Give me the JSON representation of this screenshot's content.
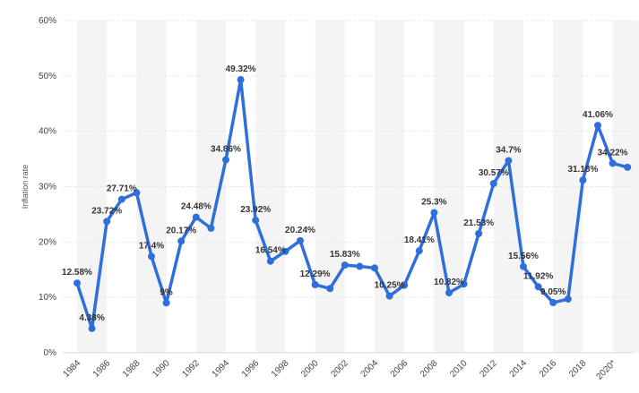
{
  "chart_data": {
    "type": "line",
    "title": "",
    "xlabel": "",
    "ylabel": "Inflation rate",
    "ylim": [
      0,
      60
    ],
    "yticks": [
      "0%",
      "10%",
      "20%",
      "30%",
      "40%",
      "50%",
      "60%"
    ],
    "xticks": [
      "1984",
      "1986",
      "1988",
      "1990",
      "1992",
      "1994",
      "1996",
      "1998",
      "2000",
      "2002",
      "2004",
      "2006",
      "2008",
      "2010",
      "2012",
      "2014",
      "2016",
      "2018",
      "2020*"
    ],
    "grid": true,
    "series_color": "#2f6fdb",
    "band_color": "#f4f4f4",
    "x": [
      "1984",
      "1985",
      "1986",
      "1987",
      "1988",
      "1989",
      "1990",
      "1991",
      "1992",
      "1993",
      "1994",
      "1995",
      "1996",
      "1997",
      "1998",
      "1999",
      "2000",
      "2001",
      "2002",
      "2003",
      "2004",
      "2005",
      "2006",
      "2007",
      "2008",
      "2009",
      "2010",
      "2011",
      "2012",
      "2013",
      "2014",
      "2015",
      "2016",
      "2017",
      "2018",
      "2019",
      "2020*",
      "2021*"
    ],
    "values": [
      12.58,
      4.38,
      23.72,
      27.71,
      28.9,
      17.4,
      9,
      20.17,
      24.48,
      22.5,
      34.86,
      49.32,
      23.92,
      16.54,
      18.3,
      20.24,
      12.29,
      11.6,
      15.83,
      15.6,
      15.3,
      10.25,
      12.2,
      18.41,
      25.3,
      10.82,
      12.4,
      21.53,
      30.57,
      34.7,
      15.56,
      11.92,
      9.05,
      9.7,
      31.18,
      41.06,
      34.22,
      33.5
    ],
    "data_labels": [
      "12.58%",
      "4.38%",
      "23.72%",
      "27.71%",
      "",
      "17.4%",
      "9%",
      "20.17%",
      "24.48%",
      "",
      "34.86%",
      "49.32%",
      "23.92%",
      "16.54%",
      "",
      "20.24%",
      "12.29%",
      "",
      "15.83%",
      "",
      "",
      "10.25%",
      "",
      "18.41%",
      "25.3%",
      "10.82%",
      "",
      "21.53%",
      "30.57%",
      "34.7%",
      "15.56%",
      "11.92%",
      "9.05%",
      "",
      "31.18%",
      "41.06%",
      "34.22%",
      ""
    ]
  }
}
